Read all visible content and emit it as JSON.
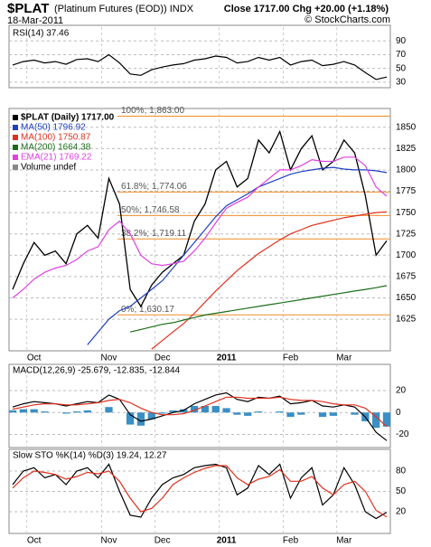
{
  "header": {
    "symbol": "$PLAT",
    "name": "(Platinum Futures (EOD)) INDX",
    "date": "18-Mar-2011",
    "quote": "Close 1717.00  Chg +20.00 (+1.18%)",
    "credit": "© StockCharts.com"
  },
  "chart_data": [
    {
      "type": "line",
      "title": "RSI(14) 37.46",
      "ylim": [
        22,
        110
      ],
      "yticks": [
        30,
        50,
        70,
        90
      ],
      "grid": true,
      "series": [
        {
          "name": "RSI(14)",
          "color": "#000000",
          "values": [
            55,
            60,
            62,
            58,
            60,
            56,
            63,
            64,
            60,
            70,
            58,
            42,
            40,
            48,
            52,
            55,
            57,
            62,
            64,
            68,
            66,
            58,
            60,
            66,
            62,
            66,
            55,
            60,
            62,
            54,
            56,
            60,
            55,
            44,
            34,
            37.46
          ]
        }
      ]
    },
    {
      "type": "line",
      "ylim": [
        1588,
        1872
      ],
      "yticks": [
        1625,
        1650,
        1675,
        1700,
        1725,
        1750,
        1775,
        1800,
        1825,
        1850
      ],
      "grid": true,
      "categories": [
        null,
        null,
        "Oct",
        null,
        null,
        null,
        null,
        null,
        null,
        "Nov",
        null,
        null,
        null,
        null,
        "Dec",
        null,
        null,
        null,
        null,
        null,
        "2011",
        null,
        null,
        null,
        null,
        null,
        "Feb",
        null,
        null,
        null,
        null,
        "Mar",
        null,
        null,
        null,
        null
      ],
      "legend_extra": "Volume undef",
      "levels": [
        {
          "value": 1863,
          "label": "100%; 1,863.00"
        },
        {
          "value": 1774.06,
          "label": "61.8%; 1,774.06"
        },
        {
          "value": 1746.58,
          "label": "50%; 1,746.58"
        },
        {
          "value": 1719.11,
          "label": "38.2%; 1,719.11"
        },
        {
          "value": 1630.17,
          "label": "0%; 1,630.17"
        }
      ],
      "level_color": "#f28c28",
      "series": [
        {
          "name": "$PLAT (Daily) 1717.00",
          "color": "#000000",
          "values": [
            1660,
            1690,
            1715,
            1700,
            1705,
            1690,
            1725,
            1735,
            1720,
            1790,
            1760,
            1660,
            1640,
            1665,
            1680,
            1690,
            1700,
            1740,
            1760,
            1800,
            1810,
            1780,
            1790,
            1835,
            1820,
            1845,
            1800,
            1825,
            1840,
            1800,
            1810,
            1835,
            1820,
            1770,
            1700,
            1717
          ]
        },
        {
          "name": "MA(50) 1796.92",
          "color": "#1f3fbf",
          "values": [
            null,
            null,
            null,
            null,
            null,
            null,
            null,
            1595,
            1610,
            1625,
            1635,
            1640,
            1650,
            1660,
            1670,
            1685,
            1700,
            1715,
            1730,
            1745,
            1758,
            1765,
            1772,
            1780,
            1785,
            1790,
            1795,
            1798,
            1800,
            1802,
            1803,
            1801,
            1800,
            1800,
            1799,
            1796.92
          ]
        },
        {
          "name": "MA(100) 1750.87",
          "color": "#e0301e",
          "values": [
            null,
            null,
            null,
            null,
            null,
            null,
            null,
            null,
            null,
            null,
            null,
            null,
            null,
            1590,
            1600,
            1610,
            1620,
            1632,
            1645,
            1658,
            1670,
            1682,
            1692,
            1702,
            1710,
            1718,
            1725,
            1730,
            1735,
            1738,
            1741,
            1744,
            1746,
            1748,
            1750,
            1750.87
          ]
        },
        {
          "name": "MA(200) 1664.38",
          "color": "#1a6e1a",
          "values": [
            null,
            null,
            null,
            null,
            null,
            null,
            null,
            null,
            null,
            null,
            null,
            1610,
            1613,
            1616,
            1619,
            1621,
            1624,
            1627,
            1630,
            1632,
            1634,
            1636,
            1638,
            1640,
            1642,
            1644,
            1646,
            1648,
            1650,
            1652,
            1654,
            1656,
            1658,
            1660,
            1662,
            1664.38
          ]
        },
        {
          "name": "EMA(21) 1769.22",
          "color": "#e040e0",
          "values": [
            1650,
            1660,
            1672,
            1680,
            1685,
            1688,
            1695,
            1705,
            1710,
            1730,
            1740,
            1725,
            1700,
            1690,
            1688,
            1690,
            1693,
            1705,
            1720,
            1738,
            1755,
            1762,
            1768,
            1780,
            1790,
            1800,
            1800,
            1805,
            1812,
            1810,
            1810,
            1815,
            1815,
            1805,
            1780,
            1769.22
          ]
        }
      ]
    },
    {
      "type": "line",
      "title": "MACD(12,26,9) -25.679, -12.835, -12.844",
      "ylim": [
        -32,
        44
      ],
      "yticks": [
        -20,
        0,
        20
      ],
      "grid": true,
      "series": [
        {
          "name": "Histogram",
          "kind": "bar",
          "color": "#3a8fc4",
          "values": [
            2,
            3,
            3,
            1,
            0,
            -1,
            1,
            2,
            0,
            5,
            0,
            -11,
            -12,
            -6,
            -1,
            2,
            3,
            6,
            6,
            6,
            4,
            -2,
            -3,
            1,
            0,
            1,
            -4,
            -2,
            0,
            -4,
            -3,
            0,
            -2,
            -8,
            -14,
            -12.844
          ]
        },
        {
          "name": "MACD",
          "color": "#000000",
          "values": [
            5,
            8,
            10,
            9,
            8,
            6,
            8,
            10,
            9,
            16,
            12,
            -2,
            -8,
            -6,
            -3,
            0,
            2,
            8,
            12,
            16,
            18,
            12,
            10,
            14,
            13,
            15,
            8,
            9,
            11,
            6,
            5,
            7,
            5,
            -4,
            -18,
            -25.679
          ]
        },
        {
          "name": "Signal",
          "color": "#e0301e",
          "values": [
            3,
            5,
            7,
            8,
            8,
            7,
            7,
            8,
            9,
            11,
            12,
            9,
            4,
            0,
            -2,
            -2,
            -1,
            2,
            6,
            10,
            14,
            14,
            13,
            13,
            13,
            14,
            12,
            11,
            11,
            10,
            8,
            7,
            7,
            4,
            -4,
            -12.835
          ]
        }
      ]
    },
    {
      "type": "line",
      "title": "Slow STO %K(14) %D(3) 19.24, 12.27",
      "ylim": [
        -12,
        112
      ],
      "yticks": [
        20,
        50,
        80
      ],
      "grid": true,
      "categories": [
        null,
        null,
        "Oct",
        null,
        null,
        null,
        null,
        null,
        null,
        "Nov",
        null,
        null,
        null,
        null,
        "Dec",
        null,
        null,
        null,
        null,
        null,
        "2011",
        null,
        null,
        null,
        null,
        null,
        "Feb",
        null,
        null,
        null,
        null,
        "Mar",
        null,
        null,
        null,
        null
      ],
      "series": [
        {
          "name": "%K",
          "color": "#000000",
          "values": [
            60,
            80,
            85,
            70,
            75,
            60,
            80,
            85,
            70,
            90,
            50,
            15,
            12,
            40,
            60,
            70,
            75,
            85,
            88,
            90,
            85,
            45,
            55,
            88,
            75,
            90,
            40,
            70,
            85,
            30,
            45,
            85,
            60,
            20,
            10,
            19.24
          ]
        },
        {
          "name": "%D",
          "color": "#e0301e",
          "values": [
            55,
            70,
            80,
            78,
            75,
            68,
            72,
            78,
            76,
            80,
            65,
            40,
            20,
            25,
            40,
            60,
            70,
            78,
            84,
            88,
            88,
            70,
            60,
            68,
            72,
            82,
            65,
            65,
            72,
            55,
            45,
            60,
            65,
            50,
            22,
            12.27
          ]
        }
      ]
    }
  ]
}
